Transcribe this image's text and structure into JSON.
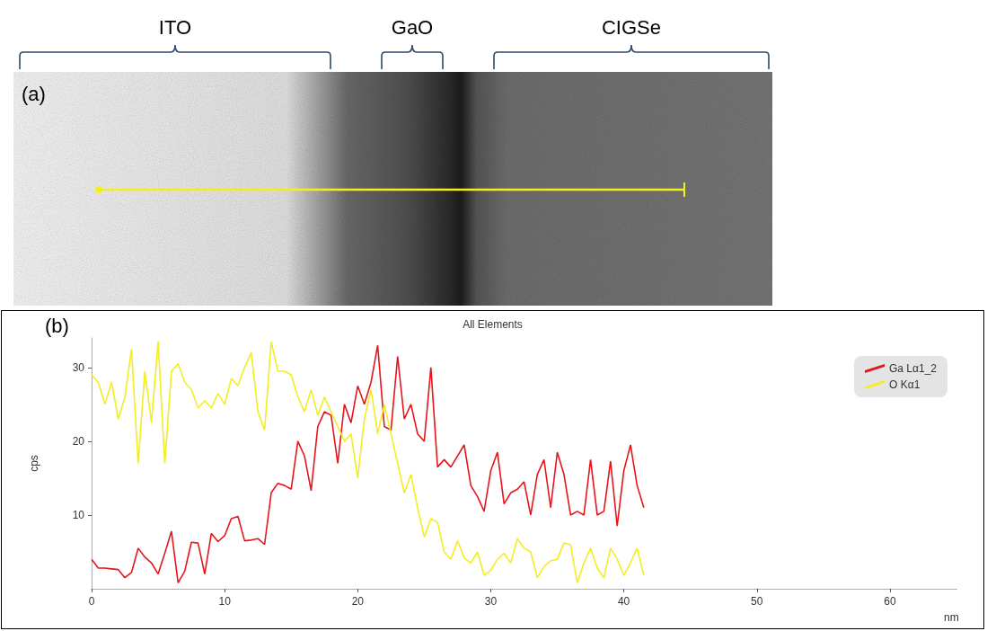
{
  "panel_a": {
    "label": "(a)",
    "regions": [
      {
        "label": "ITO"
      },
      {
        "label": "GaO"
      },
      {
        "label": "CIGSe"
      }
    ]
  },
  "chart_data": {
    "type": "line",
    "panel_label": "(b)",
    "title": "All Elements",
    "x_label": "nm",
    "y_label": "cps",
    "x": [
      0,
      0.5,
      1,
      1.5,
      2,
      2.5,
      3,
      3.5,
      4,
      4.5,
      5,
      5.5,
      6,
      6.5,
      7,
      7.5,
      8,
      8.5,
      9,
      9.5,
      10,
      10.5,
      11,
      11.5,
      12,
      12.5,
      13,
      13.5,
      14,
      14.5,
      15,
      15.5,
      16,
      16.5,
      17,
      17.5,
      18,
      18.5,
      19,
      19.5,
      20,
      20.5,
      21,
      21.5,
      22,
      22.5,
      23,
      23.5,
      24,
      24.5,
      25,
      25.5,
      26,
      26.5,
      27,
      27.5,
      28,
      28.5,
      29,
      29.5,
      30,
      30.5,
      31,
      31.5,
      32,
      32.5,
      33,
      33.5,
      34,
      34.5,
      35,
      35.5,
      36,
      36.5,
      37,
      37.5,
      38,
      38.5,
      39,
      39.5,
      40,
      40.5,
      41,
      41.5
    ],
    "series": [
      {
        "name": "Ga Lα1_2",
        "color": "#e8141c",
        "values": [
          4,
          2.8,
          2.8,
          2.7,
          2.6,
          1.5,
          2.2,
          5.5,
          4.3,
          3.5,
          2,
          4.8,
          7.8,
          0.8,
          2.4,
          6.3,
          6.2,
          2,
          7.5,
          6.4,
          7.2,
          9.5,
          9.8,
          6.5,
          6.6,
          6.8,
          6,
          13,
          14.3,
          14,
          13.5,
          20,
          18,
          13.3,
          22,
          24,
          23.5,
          17,
          25,
          22.5,
          27.5,
          25,
          28,
          33,
          22,
          21.5,
          31.5,
          23,
          25,
          21,
          20,
          30,
          16.5,
          17.5,
          16.5,
          18,
          19.5,
          14,
          12.5,
          10.5,
          16,
          18.5,
          11.5,
          13,
          13.5,
          14.5,
          10,
          15.5,
          17.5,
          11,
          18.5,
          15.5,
          10,
          10.5,
          10,
          17.5,
          10,
          10.5,
          17.3,
          8.5,
          16,
          19.5,
          14,
          11
        ]
      },
      {
        "name": "O Kα1",
        "color": "#f2ee22",
        "values": [
          29,
          28,
          25,
          28,
          23,
          26,
          32.5,
          17,
          29.5,
          22.5,
          33.5,
          17,
          29.5,
          30.5,
          28,
          27,
          24.5,
          25.5,
          24.5,
          26.5,
          25,
          28.5,
          27.5,
          30,
          32,
          24,
          21.5,
          33.5,
          29.5,
          29.5,
          29,
          26,
          24,
          27,
          23.5,
          26,
          24,
          22,
          20,
          21,
          15,
          23,
          27,
          21,
          25,
          21,
          17,
          13,
          15.5,
          11,
          7,
          9.5,
          9,
          5,
          4,
          6.5,
          4.2,
          3.5,
          5,
          1.8,
          2.5,
          4,
          4.8,
          3.5,
          6.8,
          5.5,
          5,
          1.5,
          3,
          3.8,
          4,
          6.2,
          6,
          0.8,
          3.5,
          5.5,
          2.8,
          1.5,
          5.5,
          4,
          1.8,
          3.5,
          5.5,
          1.8
        ]
      }
    ],
    "xlim": [
      0,
      65
    ],
    "xticks": [
      0,
      10,
      20,
      30,
      40,
      50,
      60
    ],
    "ylim": [
      0,
      34
    ],
    "yticks": [
      10,
      20,
      30
    ],
    "grid": false,
    "legend": "top-right"
  }
}
